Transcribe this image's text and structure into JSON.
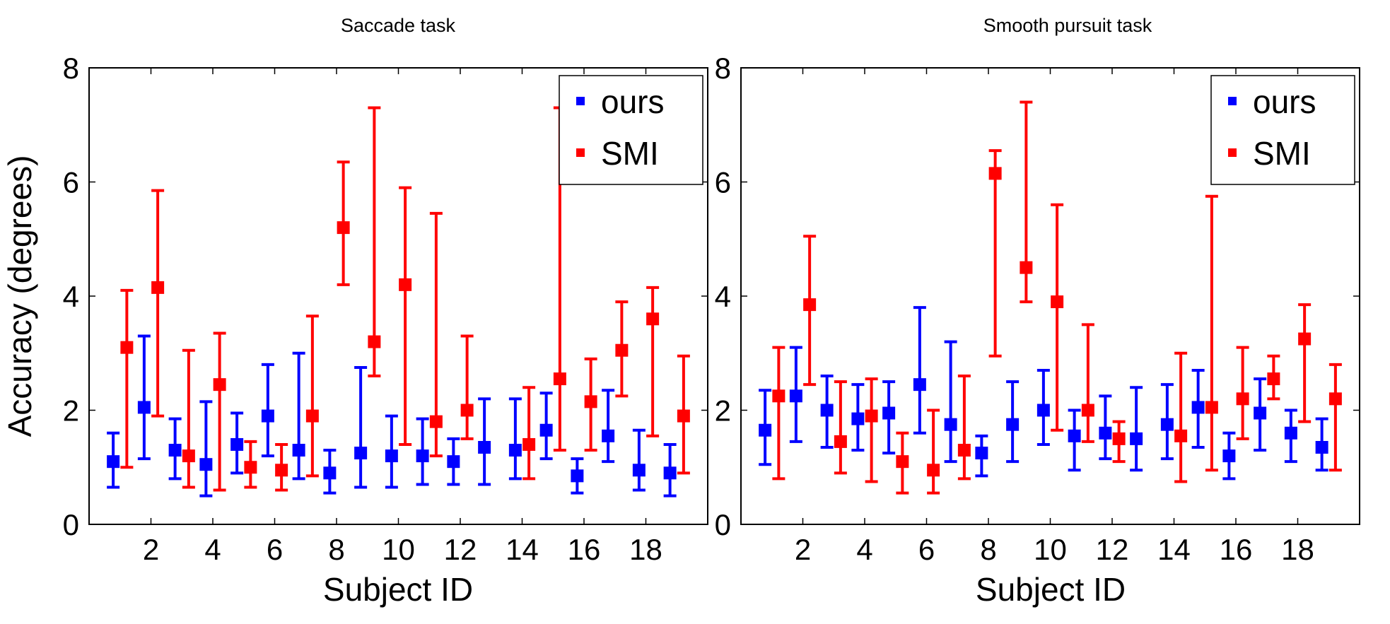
{
  "chart_data": [
    {
      "type": "errorbar",
      "title": "Saccade task",
      "xlabel": "Subject ID",
      "ylabel": "Accuracy (degrees)",
      "xlim": [
        0,
        20
      ],
      "ylim": [
        0,
        8
      ],
      "xticks": [
        2,
        4,
        6,
        8,
        10,
        12,
        14,
        16,
        18
      ],
      "yticks": [
        0,
        2,
        4,
        6,
        8
      ],
      "legend_position": "top-right",
      "series": [
        {
          "name": "ours",
          "color": "#0000ff",
          "x": [
            1,
            2,
            3,
            4,
            5,
            6,
            7,
            8,
            9,
            10,
            11,
            12,
            13,
            14,
            15,
            16,
            17,
            18,
            19
          ],
          "y": [
            1.1,
            2.05,
            1.3,
            1.05,
            1.4,
            1.9,
            1.3,
            0.9,
            1.25,
            1.2,
            1.2,
            1.1,
            1.35,
            1.3,
            1.65,
            0.85,
            1.55,
            0.95,
            0.9
          ],
          "lower": [
            0.65,
            1.15,
            0.8,
            0.5,
            0.9,
            1.2,
            0.8,
            0.55,
            0.65,
            0.65,
            0.7,
            0.7,
            0.7,
            0.8,
            1.15,
            0.55,
            1.1,
            0.6,
            0.5
          ],
          "upper": [
            1.6,
            3.3,
            1.85,
            2.15,
            1.95,
            2.8,
            3.0,
            1.3,
            2.75,
            1.9,
            1.85,
            1.5,
            2.2,
            2.2,
            2.3,
            1.15,
            2.35,
            1.65,
            1.4
          ]
        },
        {
          "name": "SMI",
          "color": "#ff0000",
          "x": [
            1,
            2,
            3,
            4,
            5,
            6,
            7,
            8,
            9,
            10,
            11,
            12,
            13,
            14,
            15,
            16,
            17,
            18,
            19
          ],
          "y": [
            3.1,
            4.15,
            1.2,
            2.45,
            1.0,
            0.95,
            1.9,
            5.2,
            3.2,
            4.2,
            1.8,
            2.0,
            null,
            1.4,
            2.55,
            2.15,
            3.05,
            3.6,
            1.9
          ],
          "lower": [
            1.0,
            1.9,
            0.65,
            0.6,
            0.65,
            0.6,
            0.85,
            4.2,
            2.6,
            1.4,
            1.2,
            1.5,
            null,
            0.8,
            1.3,
            1.3,
            2.25,
            1.55,
            0.9
          ],
          "upper": [
            4.1,
            5.85,
            3.05,
            3.35,
            1.45,
            1.4,
            3.65,
            6.35,
            7.3,
            5.9,
            5.45,
            3.3,
            null,
            2.4,
            7.3,
            2.9,
            3.9,
            4.15,
            2.95
          ]
        }
      ]
    },
    {
      "type": "errorbar",
      "title": "Smooth pursuit task",
      "xlabel": "Subject ID",
      "ylabel": "",
      "xlim": [
        0,
        20
      ],
      "ylim": [
        0,
        8
      ],
      "xticks": [
        2,
        4,
        6,
        8,
        10,
        12,
        14,
        16,
        18
      ],
      "yticks": [
        0,
        2,
        4,
        6,
        8
      ],
      "legend_position": "top-right",
      "series": [
        {
          "name": "ours",
          "color": "#0000ff",
          "x": [
            1,
            2,
            3,
            4,
            5,
            6,
            7,
            8,
            9,
            10,
            11,
            12,
            13,
            14,
            15,
            16,
            17,
            18,
            19
          ],
          "y": [
            1.65,
            2.25,
            2.0,
            1.85,
            1.95,
            2.45,
            1.75,
            1.25,
            1.75,
            2.0,
            1.55,
            1.6,
            1.5,
            1.75,
            2.05,
            1.2,
            1.95,
            1.6,
            1.35
          ],
          "lower": [
            1.05,
            1.45,
            1.35,
            1.3,
            1.25,
            1.6,
            1.1,
            0.85,
            1.1,
            1.4,
            0.95,
            1.15,
            0.95,
            1.15,
            1.35,
            0.8,
            1.3,
            1.1,
            0.95
          ],
          "upper": [
            2.35,
            3.1,
            2.6,
            2.45,
            2.5,
            3.8,
            3.2,
            1.55,
            2.5,
            2.7,
            2.0,
            2.25,
            2.4,
            2.45,
            2.7,
            1.6,
            2.55,
            2.0,
            1.85
          ]
        },
        {
          "name": "SMI",
          "color": "#ff0000",
          "x": [
            1,
            2,
            3,
            4,
            5,
            6,
            7,
            8,
            9,
            10,
            11,
            12,
            13,
            14,
            15,
            16,
            17,
            18,
            19
          ],
          "y": [
            2.25,
            3.85,
            1.45,
            1.9,
            1.1,
            0.95,
            1.3,
            6.15,
            4.5,
            3.9,
            2.0,
            1.5,
            null,
            1.55,
            2.05,
            2.2,
            2.55,
            3.25,
            2.2
          ],
          "lower": [
            0.8,
            2.45,
            0.9,
            0.75,
            0.55,
            0.55,
            0.8,
            2.95,
            3.9,
            1.65,
            1.45,
            1.1,
            null,
            0.75,
            0.95,
            1.5,
            2.2,
            1.8,
            0.95
          ],
          "upper": [
            3.1,
            5.05,
            2.5,
            2.55,
            1.6,
            2.0,
            2.6,
            6.55,
            7.4,
            5.6,
            3.5,
            1.8,
            null,
            3.0,
            5.75,
            3.1,
            2.95,
            3.85,
            2.8
          ]
        }
      ]
    }
  ]
}
